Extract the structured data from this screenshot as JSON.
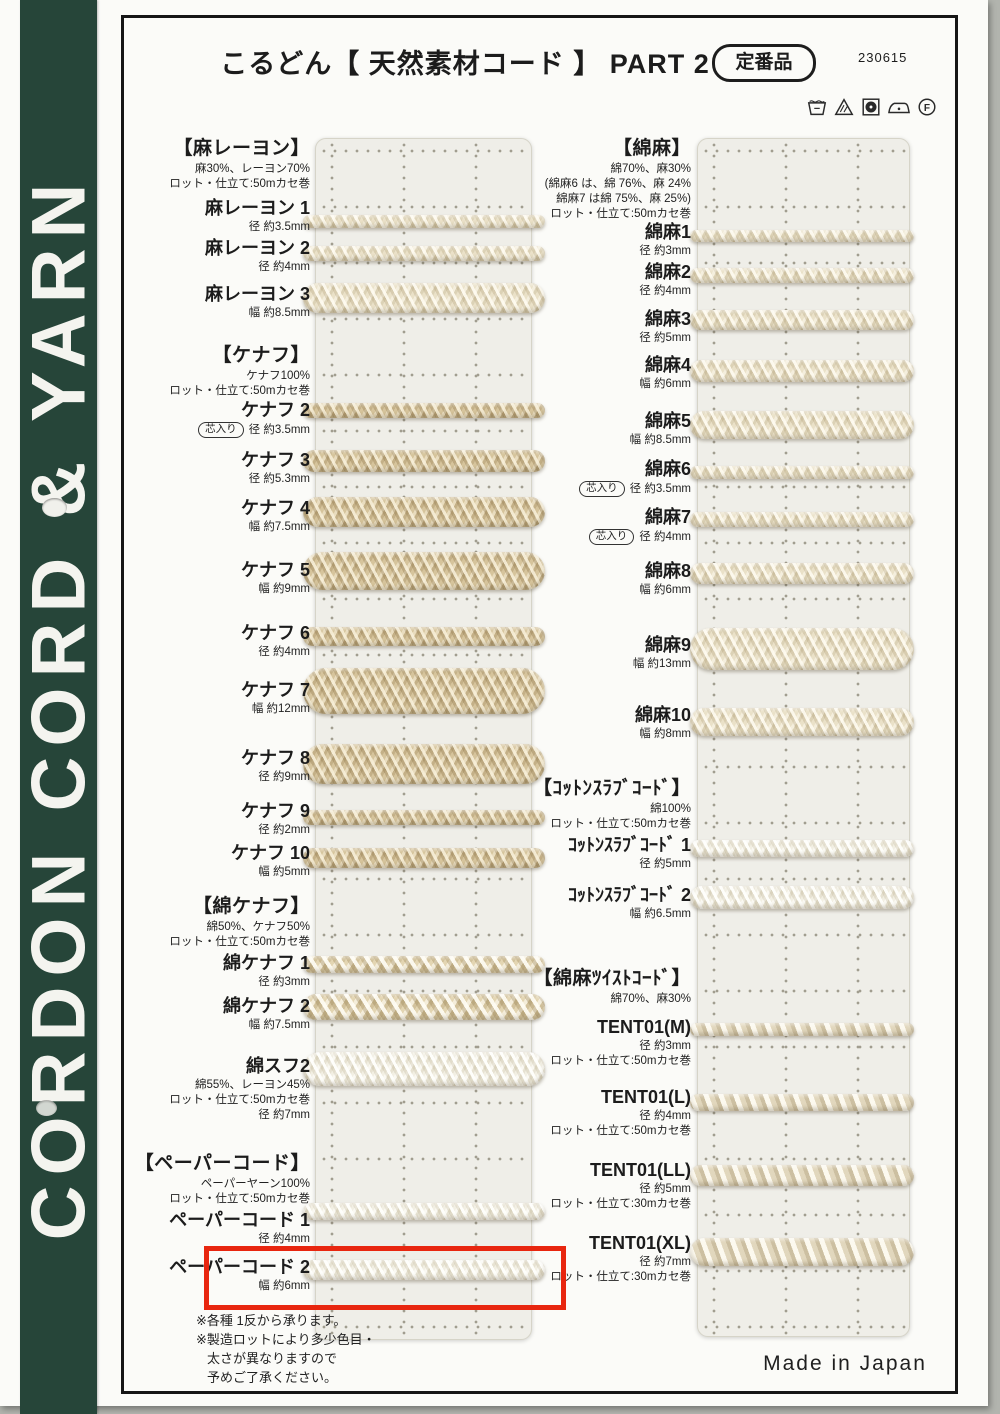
{
  "page": {
    "title": "こるどん【 天然素材コード 】 PART 2",
    "badge": "定番品",
    "doc_number": "230615",
    "sidebar_text": "CORDON CORD & YARN",
    "made_in": "Made in Japan",
    "care_icons": [
      "wash-tub-icon",
      "bleach-triangle-icon",
      "tumble-dry-square-icon",
      "iron-icon",
      "dry-clean-circle-f-icon"
    ]
  },
  "columns": {
    "left": [
      {
        "type": "section",
        "name": "【麻レーヨン】",
        "lines": [
          "麻30%、レーヨン70%",
          "ロット・仕立て:50mカセ巻"
        ]
      },
      {
        "type": "item",
        "name": "麻レーヨン 1",
        "lines": [
          "径 約3.5mm"
        ]
      },
      {
        "type": "item",
        "name": "麻レーヨン 2",
        "lines": [
          "径 約4mm"
        ]
      },
      {
        "type": "item",
        "name": "麻レーヨン 3",
        "lines": [
          "幅 約8.5mm"
        ]
      },
      {
        "type": "section",
        "name": "【ケナフ】",
        "lines": [
          "ケナフ100%",
          "ロット・仕立て:50mカセ巻"
        ]
      },
      {
        "type": "item",
        "name": "ケナフ 2",
        "badge": "芯入り",
        "lines": [
          "径 約3.5mm"
        ]
      },
      {
        "type": "item",
        "name": "ケナフ 3",
        "lines": [
          "径 約5.3mm"
        ]
      },
      {
        "type": "item",
        "name": "ケナフ 4",
        "lines": [
          "幅 約7.5mm"
        ]
      },
      {
        "type": "item",
        "name": "ケナフ 5",
        "lines": [
          "幅 約9mm"
        ]
      },
      {
        "type": "item",
        "name": "ケナフ 6",
        "lines": [
          "径 約4mm"
        ]
      },
      {
        "type": "item",
        "name": "ケナフ 7",
        "lines": [
          "幅 約12mm"
        ]
      },
      {
        "type": "item",
        "name": "ケナフ 8",
        "lines": [
          "径 約9mm"
        ]
      },
      {
        "type": "item",
        "name": "ケナフ 9",
        "lines": [
          "径 約2mm"
        ]
      },
      {
        "type": "item",
        "name": "ケナフ 10",
        "lines": [
          "幅 約5mm"
        ]
      },
      {
        "type": "section",
        "name": "【綿ケナフ】",
        "lines": [
          "綿50%、ケナフ50%",
          "ロット・仕立て:50mカセ巻"
        ]
      },
      {
        "type": "item",
        "name": "綿ケナフ 1",
        "lines": [
          "径 約3mm"
        ]
      },
      {
        "type": "item",
        "name": "綿ケナフ 2",
        "lines": [
          "幅 約7.5mm"
        ]
      },
      {
        "type": "item",
        "name": "綿スフ2",
        "lines": [
          "綿55%、レーヨン45%",
          "ロット・仕立て:50mカセ巻",
          "径 約7mm"
        ]
      },
      {
        "type": "section",
        "name": "【ペーパーコード】",
        "lines": [
          "ペーパーヤーン100%",
          "ロット・仕立て:50mカセ巻"
        ]
      },
      {
        "type": "item",
        "name": "ペーパーコード 1",
        "lines": [
          "径 約4mm"
        ]
      },
      {
        "type": "item",
        "name": "ペーパーコード 2",
        "lines": [
          "幅 約6mm"
        ],
        "highlight": true
      }
    ],
    "right": [
      {
        "type": "section",
        "name": "【綿麻】",
        "lines": [
          "綿70%、麻30%",
          "(綿麻6 は、綿 76%、麻 24%",
          "綿麻7 は綿 75%、麻 25%)",
          "ロット・仕立て:50mカセ巻"
        ]
      },
      {
        "type": "item",
        "name": "綿麻1",
        "lines": [
          "径 約3mm"
        ]
      },
      {
        "type": "item",
        "name": "綿麻2",
        "lines": [
          "径 約4mm"
        ]
      },
      {
        "type": "item",
        "name": "綿麻3",
        "lines": [
          "径 約5mm"
        ]
      },
      {
        "type": "item",
        "name": "綿麻4",
        "lines": [
          "幅 約6mm"
        ]
      },
      {
        "type": "item",
        "name": "綿麻5",
        "lines": [
          "幅 約8.5mm"
        ]
      },
      {
        "type": "item",
        "name": "綿麻6",
        "badge": "芯入り",
        "lines": [
          "径 約3.5mm"
        ]
      },
      {
        "type": "item",
        "name": "綿麻7",
        "badge": "芯入り",
        "lines": [
          "径 約4mm"
        ]
      },
      {
        "type": "item",
        "name": "綿麻8",
        "lines": [
          "幅 約6mm"
        ]
      },
      {
        "type": "item",
        "name": "綿麻9",
        "lines": [
          "幅 約13mm"
        ]
      },
      {
        "type": "item",
        "name": "綿麻10",
        "lines": [
          "幅 約8mm"
        ]
      },
      {
        "type": "section",
        "name": "【ｺｯﾄﾝｽﾗﾌﾞｺｰﾄﾞ】",
        "lines": [
          "綿100%",
          "ロット・仕立て:50mカセ巻"
        ]
      },
      {
        "type": "item",
        "name": "ｺｯﾄﾝｽﾗﾌﾞｺｰﾄﾞ 1",
        "lines": [
          "径 約5mm"
        ]
      },
      {
        "type": "item",
        "name": "ｺｯﾄﾝｽﾗﾌﾞｺｰﾄﾞ 2",
        "lines": [
          "幅 約6.5mm"
        ]
      },
      {
        "type": "section",
        "name": "【綿麻ﾂｲｽﾄｺｰﾄﾞ】",
        "lines": [
          "綿70%、麻30%"
        ]
      },
      {
        "type": "item",
        "name": "TENT01(M)",
        "lines": [
          "径 約3mm",
          "ロット・仕立て:50mカセ巻"
        ]
      },
      {
        "type": "item",
        "name": "TENT01(L)",
        "lines": [
          "径 約4mm",
          "ロット・仕立て:50mカセ巻"
        ]
      },
      {
        "type": "item",
        "name": "TENT01(LL)",
        "lines": [
          "径 約5mm",
          "ロット・仕立て:30mカセ巻"
        ]
      },
      {
        "type": "item",
        "name": "TENT01(XL)",
        "lines": [
          "径 約7mm",
          "ロット・仕立て:30mカセ巻"
        ]
      }
    ]
  },
  "footnotes": [
    "※各種 1反から承ります。",
    "※製造ロットにより多少色目・",
    "太さが異なりますので",
    "予めご了承ください。"
  ],
  "colors": {
    "banner_green": "#264539",
    "highlight_red": "#e8260f"
  }
}
